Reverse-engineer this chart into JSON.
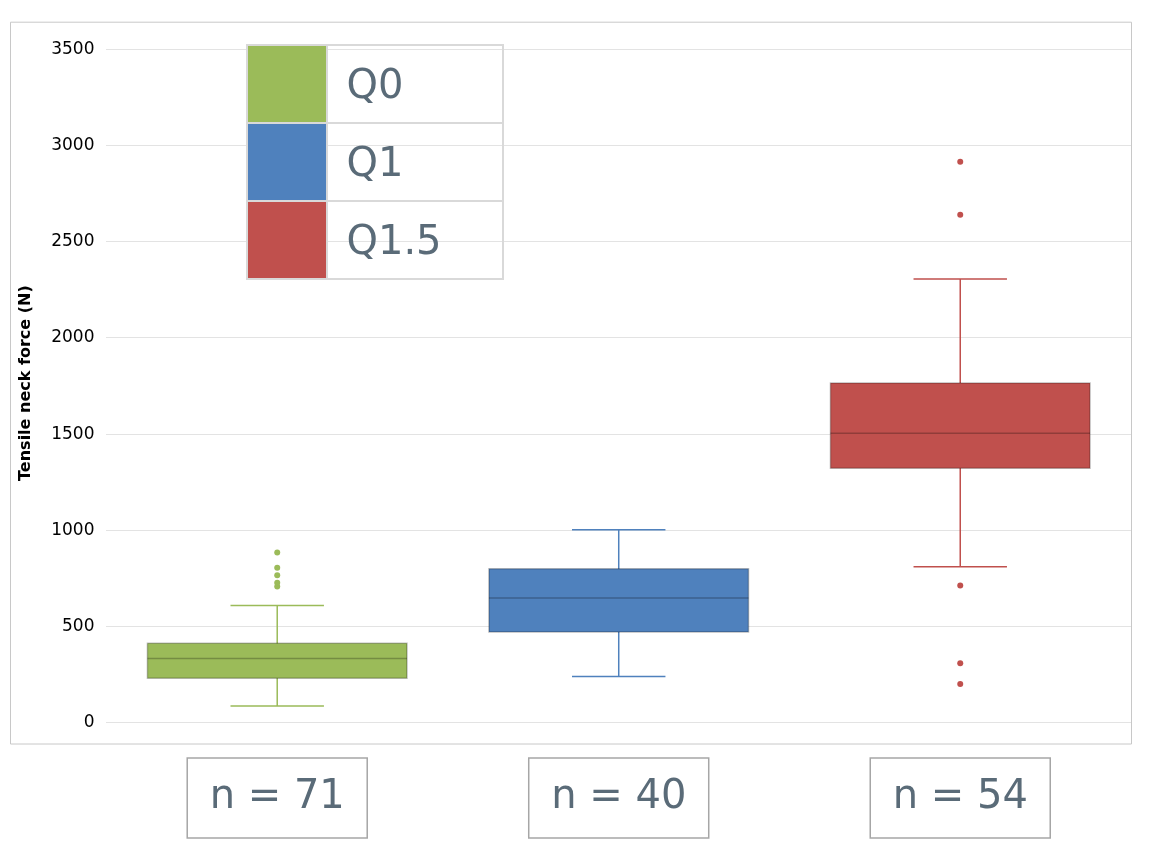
{
  "chart_data": {
    "type": "box",
    "ylabel": "Tensile neck force (N)",
    "categories": [
      "n = 71",
      "n = 40",
      "n = 54"
    ],
    "series": [
      {
        "name": "Q0",
        "color": "#9bbb59",
        "boxes": [
          {
            "low": 88,
            "q1": 231,
            "median": 334,
            "q3": 413,
            "high": 610,
            "outliers": [
              708,
              728,
              767,
              806,
              885
            ]
          },
          null,
          null
        ]
      },
      {
        "name": "Q1",
        "color": "#4f81bd",
        "boxes": [
          null,
          {
            "low": 241,
            "q1": 472,
            "median": 649,
            "q3": 801,
            "high": 1003
          },
          null
        ]
      },
      {
        "name": "Q1.5",
        "color": "#c0504d",
        "boxes": [
          null,
          null,
          {
            "low": 811,
            "q1": 1322,
            "median": 1504,
            "q3": 1765,
            "high": 2306,
            "outliers": [
              202,
              310,
              713,
              2640,
              2915
            ]
          }
        ]
      }
    ],
    "ylim": [
      -110,
      3640
    ],
    "yticks": [
      0,
      500,
      1000,
      1500,
      2000,
      2500,
      3000,
      3500
    ],
    "grid": "y",
    "legend": "top left"
  }
}
